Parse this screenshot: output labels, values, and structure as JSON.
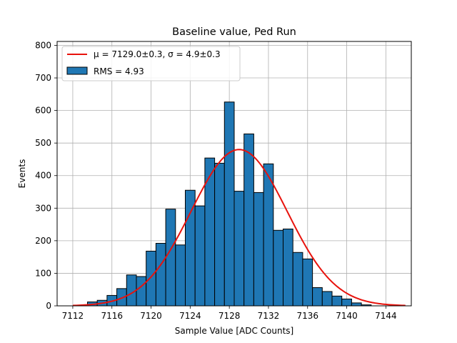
{
  "chart_data": {
    "type": "bar",
    "title": "Baseline value, Ped Run",
    "xlabel": "Sample Value [ADC Counts]",
    "ylabel": "Events",
    "xlim": [
      7110.4,
      7146.6
    ],
    "ylim": [
      0,
      812
    ],
    "xticks": [
      7112,
      7116,
      7120,
      7124,
      7128,
      7132,
      7136,
      7140,
      7144
    ],
    "yticks": [
      0,
      100,
      200,
      300,
      400,
      500,
      600,
      700,
      800
    ],
    "grid": true,
    "legend_position": "top-left",
    "bin_width": 1,
    "bins": [
      {
        "x": 7114,
        "count": 12
      },
      {
        "x": 7115,
        "count": 17
      },
      {
        "x": 7116,
        "count": 32
      },
      {
        "x": 7117,
        "count": 53
      },
      {
        "x": 7118,
        "count": 95
      },
      {
        "x": 7119,
        "count": 90
      },
      {
        "x": 7120,
        "count": 168
      },
      {
        "x": 7121,
        "count": 192
      },
      {
        "x": 7122,
        "count": 297
      },
      {
        "x": 7123,
        "count": 187
      },
      {
        "x": 7124,
        "count": 355
      },
      {
        "x": 7125,
        "count": 307
      },
      {
        "x": 7126,
        "count": 454
      },
      {
        "x": 7127,
        "count": 438
      },
      {
        "x": 7128,
        "count": 626
      },
      {
        "x": 7129,
        "count": 352
      },
      {
        "x": 7130,
        "count": 528
      },
      {
        "x": 7131,
        "count": 348
      },
      {
        "x": 7132,
        "count": 436
      },
      {
        "x": 7133,
        "count": 232
      },
      {
        "x": 7134,
        "count": 236
      },
      {
        "x": 7135,
        "count": 164
      },
      {
        "x": 7136,
        "count": 144
      },
      {
        "x": 7137,
        "count": 56
      },
      {
        "x": 7138,
        "count": 44
      },
      {
        "x": 7139,
        "count": 30
      },
      {
        "x": 7140,
        "count": 21
      },
      {
        "x": 7141,
        "count": 9
      },
      {
        "x": 7142,
        "count": 3
      }
    ],
    "fit": {
      "mu": 7129.0,
      "sigma": 4.9,
      "amplitude": 480,
      "x_range": [
        7112,
        7146
      ]
    },
    "legend": [
      {
        "label": "μ = 7129.0±0.3, σ = 4.9±0.3"
      },
      {
        "label": "RMS = 4.93"
      }
    ],
    "colors": {
      "bar_fill": "#1f77b4",
      "bar_edge": "#000000",
      "fit_line": "#e8120c",
      "grid": "#b0b0b0"
    }
  }
}
